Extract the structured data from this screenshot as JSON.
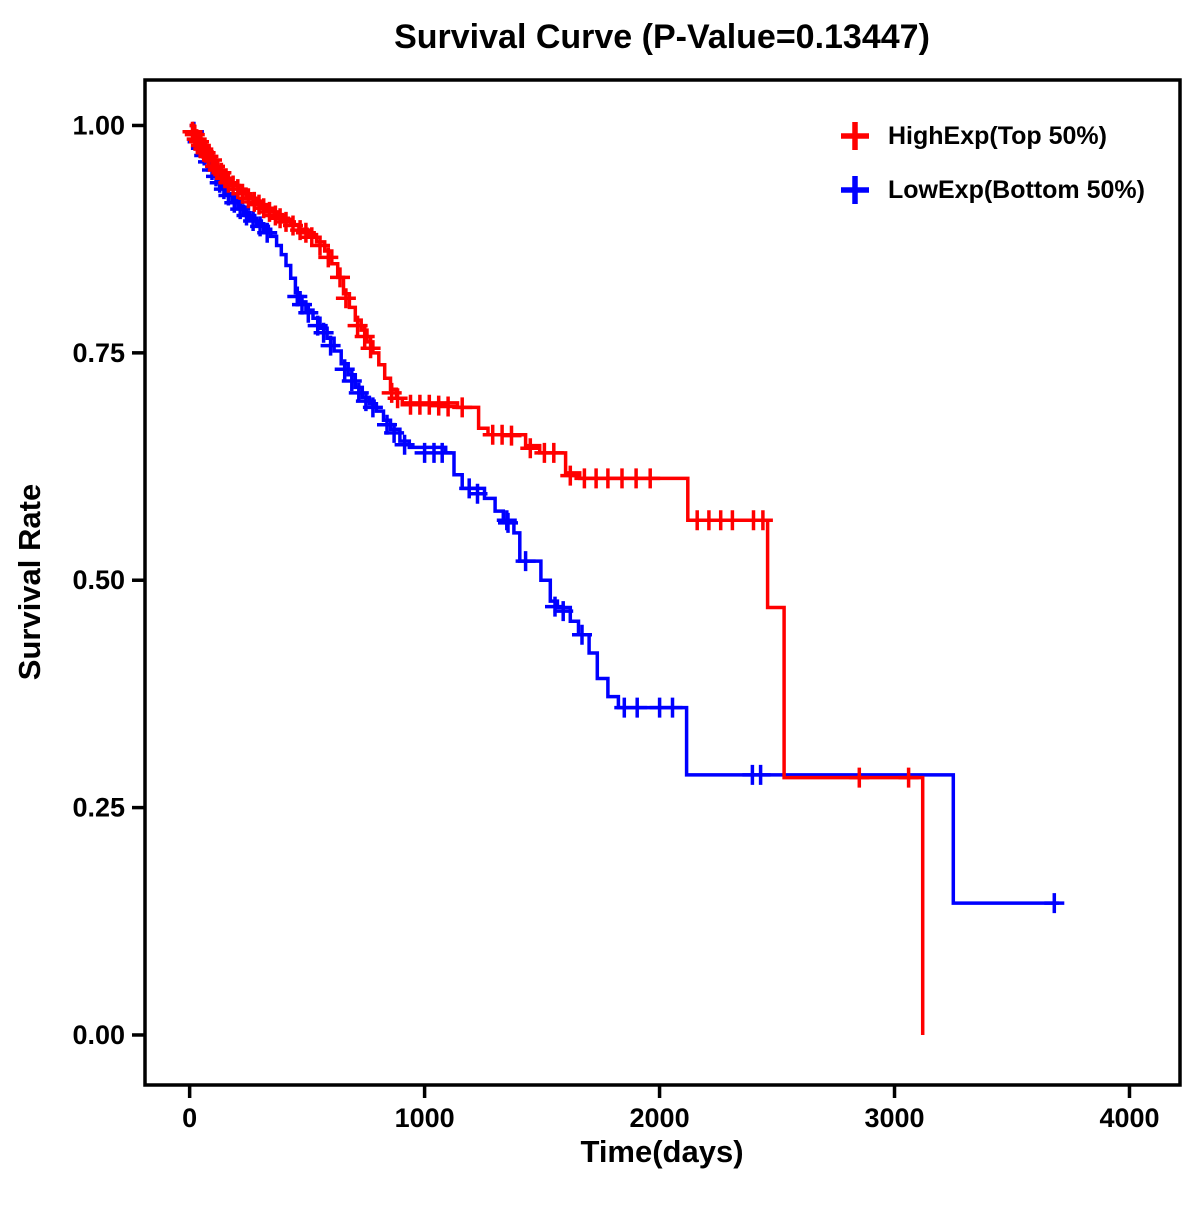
{
  "title": "Survival Curve (P-Value=0.13447)",
  "colors": {
    "high_exp": "#FF0000",
    "low_exp": "#0000FF",
    "axis": "#000000",
    "background": "#FFFFFF"
  },
  "chart_data": {
    "type": "line",
    "subtype": "kaplan-meier-step",
    "title": "Survival Curve (P-Value=0.13447)",
    "xlabel": "Time(days)",
    "ylabel": "Survival Rate",
    "xlim": [
      -190,
      4215
    ],
    "ylim": [
      -0.055,
      1.05
    ],
    "xticks": [
      0,
      1000,
      2000,
      3000,
      4000
    ],
    "xtick_labels": [
      "0",
      "1000",
      "2000",
      "3000",
      "4000"
    ],
    "yticks": [
      0.0,
      0.25,
      0.5,
      0.75,
      1.0
    ],
    "ytick_labels": [
      "0.00",
      "0.25",
      "0.50",
      "0.75",
      "1.00"
    ],
    "grid": false,
    "legend_position": "top-right",
    "series": [
      {
        "name": "HighExp(Top 50%)",
        "color": "#FF0000",
        "steps": [
          [
            0,
            1.0
          ],
          [
            18,
            0.993
          ],
          [
            35,
            0.985
          ],
          [
            52,
            0.978
          ],
          [
            70,
            0.97
          ],
          [
            90,
            0.962
          ],
          [
            110,
            0.955
          ],
          [
            130,
            0.948
          ],
          [
            155,
            0.94
          ],
          [
            180,
            0.934
          ],
          [
            210,
            0.928
          ],
          [
            240,
            0.922
          ],
          [
            270,
            0.917
          ],
          [
            300,
            0.912
          ],
          [
            330,
            0.907
          ],
          [
            360,
            0.902
          ],
          [
            395,
            0.897
          ],
          [
            430,
            0.891
          ],
          [
            465,
            0.886
          ],
          [
            500,
            0.88
          ],
          [
            540,
            0.872
          ],
          [
            575,
            0.862
          ],
          [
            605,
            0.848
          ],
          [
            630,
            0.833
          ],
          [
            655,
            0.815
          ],
          [
            680,
            0.8
          ],
          [
            705,
            0.786
          ],
          [
            730,
            0.775
          ],
          [
            755,
            0.762
          ],
          [
            780,
            0.75
          ],
          [
            805,
            0.737
          ],
          [
            830,
            0.722
          ],
          [
            855,
            0.71
          ],
          [
            880,
            0.7
          ],
          [
            905,
            0.695
          ],
          [
            1140,
            0.69
          ],
          [
            1230,
            0.667
          ],
          [
            1270,
            0.66
          ],
          [
            1430,
            0.648
          ],
          [
            1490,
            0.64
          ],
          [
            1600,
            0.618
          ],
          [
            1660,
            0.612
          ],
          [
            2120,
            0.566
          ],
          [
            2460,
            0.47
          ],
          [
            2530,
            0.283
          ],
          [
            3120,
            0.0
          ]
        ],
        "censors": [
          [
            12,
            0.993
          ],
          [
            22,
            0.99
          ],
          [
            30,
            0.985
          ],
          [
            40,
            0.982
          ],
          [
            48,
            0.978
          ],
          [
            58,
            0.974
          ],
          [
            68,
            0.97
          ],
          [
            80,
            0.966
          ],
          [
            95,
            0.962
          ],
          [
            108,
            0.955
          ],
          [
            120,
            0.951
          ],
          [
            135,
            0.948
          ],
          [
            150,
            0.942
          ],
          [
            165,
            0.937
          ],
          [
            185,
            0.934
          ],
          [
            205,
            0.93
          ],
          [
            225,
            0.925
          ],
          [
            250,
            0.92
          ],
          [
            275,
            0.916
          ],
          [
            295,
            0.913
          ],
          [
            315,
            0.909
          ],
          [
            340,
            0.905
          ],
          [
            365,
            0.901
          ],
          [
            385,
            0.898
          ],
          [
            410,
            0.894
          ],
          [
            440,
            0.89
          ],
          [
            470,
            0.885
          ],
          [
            495,
            0.882
          ],
          [
            520,
            0.877
          ],
          [
            555,
            0.868
          ],
          [
            590,
            0.855
          ],
          [
            640,
            0.833
          ],
          [
            665,
            0.81
          ],
          [
            715,
            0.78
          ],
          [
            745,
            0.768
          ],
          [
            770,
            0.755
          ],
          [
            860,
            0.706
          ],
          [
            885,
            0.7
          ],
          [
            940,
            0.693
          ],
          [
            980,
            0.693
          ],
          [
            1020,
            0.693
          ],
          [
            1060,
            0.692
          ],
          [
            1100,
            0.691
          ],
          [
            1160,
            0.69
          ],
          [
            1290,
            0.66
          ],
          [
            1330,
            0.66
          ],
          [
            1370,
            0.659
          ],
          [
            1450,
            0.645
          ],
          [
            1510,
            0.64
          ],
          [
            1550,
            0.64
          ],
          [
            1620,
            0.615
          ],
          [
            1680,
            0.612
          ],
          [
            1730,
            0.612
          ],
          [
            1780,
            0.612
          ],
          [
            1840,
            0.612
          ],
          [
            1900,
            0.612
          ],
          [
            1960,
            0.612
          ],
          [
            2160,
            0.566
          ],
          [
            2210,
            0.566
          ],
          [
            2260,
            0.566
          ],
          [
            2310,
            0.566
          ],
          [
            2400,
            0.566
          ],
          [
            2440,
            0.566
          ],
          [
            2850,
            0.283
          ],
          [
            3060,
            0.283
          ]
        ]
      },
      {
        "name": "LowExp(Bottom 50%)",
        "color": "#0000FF",
        "steps": [
          [
            0,
            1.0
          ],
          [
            14,
            0.993
          ],
          [
            28,
            0.985
          ],
          [
            42,
            0.977
          ],
          [
            56,
            0.97
          ],
          [
            72,
            0.962
          ],
          [
            88,
            0.955
          ],
          [
            104,
            0.947
          ],
          [
            122,
            0.94
          ],
          [
            140,
            0.932
          ],
          [
            160,
            0.925
          ],
          [
            180,
            0.918
          ],
          [
            205,
            0.911
          ],
          [
            230,
            0.904
          ],
          [
            255,
            0.898
          ],
          [
            285,
            0.892
          ],
          [
            315,
            0.886
          ],
          [
            345,
            0.878
          ],
          [
            370,
            0.868
          ],
          [
            390,
            0.858
          ],
          [
            410,
            0.846
          ],
          [
            430,
            0.832
          ],
          [
            450,
            0.816
          ],
          [
            470,
            0.806
          ],
          [
            495,
            0.797
          ],
          [
            525,
            0.788
          ],
          [
            555,
            0.777
          ],
          [
            585,
            0.766
          ],
          [
            615,
            0.752
          ],
          [
            645,
            0.738
          ],
          [
            675,
            0.726
          ],
          [
            705,
            0.712
          ],
          [
            735,
            0.701
          ],
          [
            765,
            0.694
          ],
          [
            795,
            0.686
          ],
          [
            825,
            0.676
          ],
          [
            855,
            0.666
          ],
          [
            895,
            0.653
          ],
          [
            935,
            0.646
          ],
          [
            1090,
            0.64
          ],
          [
            1125,
            0.616
          ],
          [
            1160,
            0.601
          ],
          [
            1255,
            0.59
          ],
          [
            1300,
            0.576
          ],
          [
            1335,
            0.566
          ],
          [
            1380,
            0.552
          ],
          [
            1405,
            0.521
          ],
          [
            1495,
            0.5
          ],
          [
            1535,
            0.477
          ],
          [
            1565,
            0.47
          ],
          [
            1620,
            0.455
          ],
          [
            1655,
            0.44
          ],
          [
            1700,
            0.42
          ],
          [
            1735,
            0.392
          ],
          [
            1780,
            0.372
          ],
          [
            1825,
            0.36
          ],
          [
            2115,
            0.286
          ],
          [
            3250,
            0.145
          ],
          [
            3700,
            0.145
          ]
        ],
        "censors": [
          [
            18,
            0.993
          ],
          [
            34,
            0.982
          ],
          [
            48,
            0.975
          ],
          [
            62,
            0.967
          ],
          [
            78,
            0.96
          ],
          [
            95,
            0.951
          ],
          [
            112,
            0.944
          ],
          [
            128,
            0.937
          ],
          [
            146,
            0.93
          ],
          [
            165,
            0.923
          ],
          [
            190,
            0.915
          ],
          [
            215,
            0.908
          ],
          [
            242,
            0.901
          ],
          [
            270,
            0.895
          ],
          [
            300,
            0.889
          ],
          [
            330,
            0.882
          ],
          [
            458,
            0.812
          ],
          [
            478,
            0.803
          ],
          [
            505,
            0.794
          ],
          [
            545,
            0.78
          ],
          [
            570,
            0.772
          ],
          [
            600,
            0.758
          ],
          [
            660,
            0.732
          ],
          [
            690,
            0.719
          ],
          [
            720,
            0.706
          ],
          [
            750,
            0.697
          ],
          [
            780,
            0.69
          ],
          [
            840,
            0.671
          ],
          [
            870,
            0.662
          ],
          [
            915,
            0.649
          ],
          [
            1000,
            0.64
          ],
          [
            1040,
            0.64
          ],
          [
            1075,
            0.64
          ],
          [
            1190,
            0.601
          ],
          [
            1225,
            0.595
          ],
          [
            1350,
            0.566
          ],
          [
            1355,
            0.563
          ],
          [
            1430,
            0.521
          ],
          [
            1555,
            0.471
          ],
          [
            1590,
            0.466
          ],
          [
            1670,
            0.44
          ],
          [
            1850,
            0.36
          ],
          [
            1905,
            0.36
          ],
          [
            2000,
            0.36
          ],
          [
            2055,
            0.36
          ],
          [
            2395,
            0.286
          ],
          [
            2430,
            0.286
          ],
          [
            3680,
            0.145
          ]
        ]
      }
    ]
  }
}
